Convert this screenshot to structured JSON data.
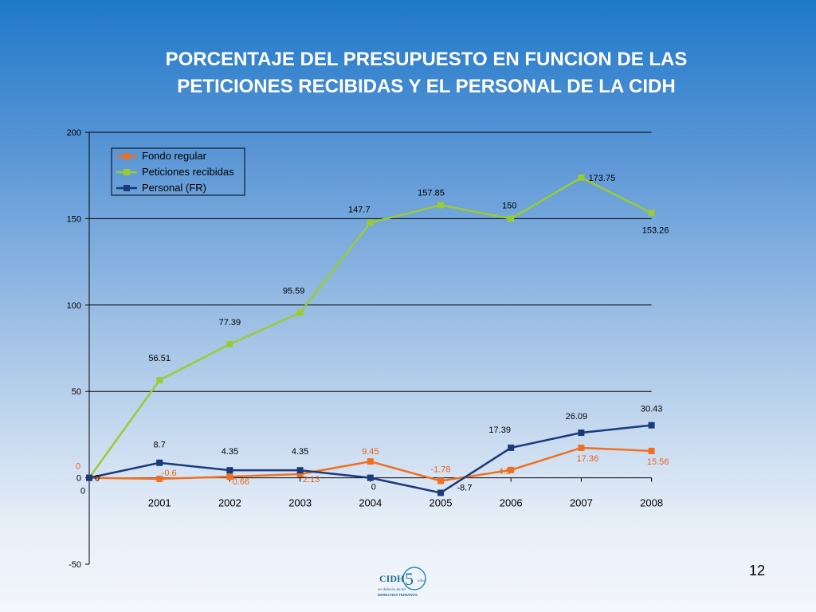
{
  "slide": {
    "title_line1": "PORCENTAJE DEL PRESUPUESTO EN FUNCION DE LAS",
    "title_line2": "PETICIONES RECIBIDAS Y EL PERSONAL DE LA CIDH",
    "page_number": "12",
    "logo": {
      "name": "CIDH",
      "anos": "años",
      "tagline1": "en defensa de los",
      "tagline2": "DERECHOS HUMANOS"
    }
  },
  "chart_data": {
    "type": "line",
    "title": "",
    "xlabel": "",
    "ylabel": "",
    "ylim": [
      -50,
      200
    ],
    "yticks": [
      200,
      150,
      100,
      50,
      0,
      -50
    ],
    "ytick_labels": [
      "200",
      "150",
      "100",
      "50",
      "0",
      "-50"
    ],
    "gridlines": [
      200,
      150,
      100,
      50,
      0
    ],
    "x": [
      "",
      "2001",
      "2002",
      "2003",
      "2004",
      "2005",
      "2006",
      "2007",
      "2008"
    ],
    "x_origin_label": "0",
    "legend_position": "top-left",
    "series": [
      {
        "name": "Fondo regular",
        "color": "#f07020",
        "label_color": "#e8641c",
        "values": [
          0,
          -0.6,
          0.66,
          2.13,
          9.45,
          -1.78,
          4.5,
          17.36,
          15.56
        ],
        "labels": [
          "0",
          "-0.6",
          "0.66",
          "2.13",
          "9.45",
          "-1.78",
          "4.5",
          "17.36",
          "15.56"
        ]
      },
      {
        "name": "Peticiones recibidas",
        "color": "#99cc33",
        "label_color": "#000000",
        "values": [
          0,
          56.51,
          77.39,
          95.59,
          147.7,
          157.85,
          150,
          173.75,
          153.26
        ],
        "labels": [
          "",
          "56.51",
          "77.39",
          "95.59",
          "147.7",
          "157.85",
          "150",
          "173.75",
          "153.26"
        ]
      },
      {
        "name": "Personal (FR)",
        "color": "#1a3a7a",
        "label_color": "#000000",
        "values": [
          0,
          8.7,
          4.35,
          4.35,
          0,
          -8.7,
          17.39,
          26.09,
          30.43
        ],
        "labels": [
          "0",
          "8.7",
          "4.35",
          "4.35",
          "0",
          "-8.7",
          "17.39",
          "26.09",
          "30.43"
        ]
      }
    ]
  }
}
